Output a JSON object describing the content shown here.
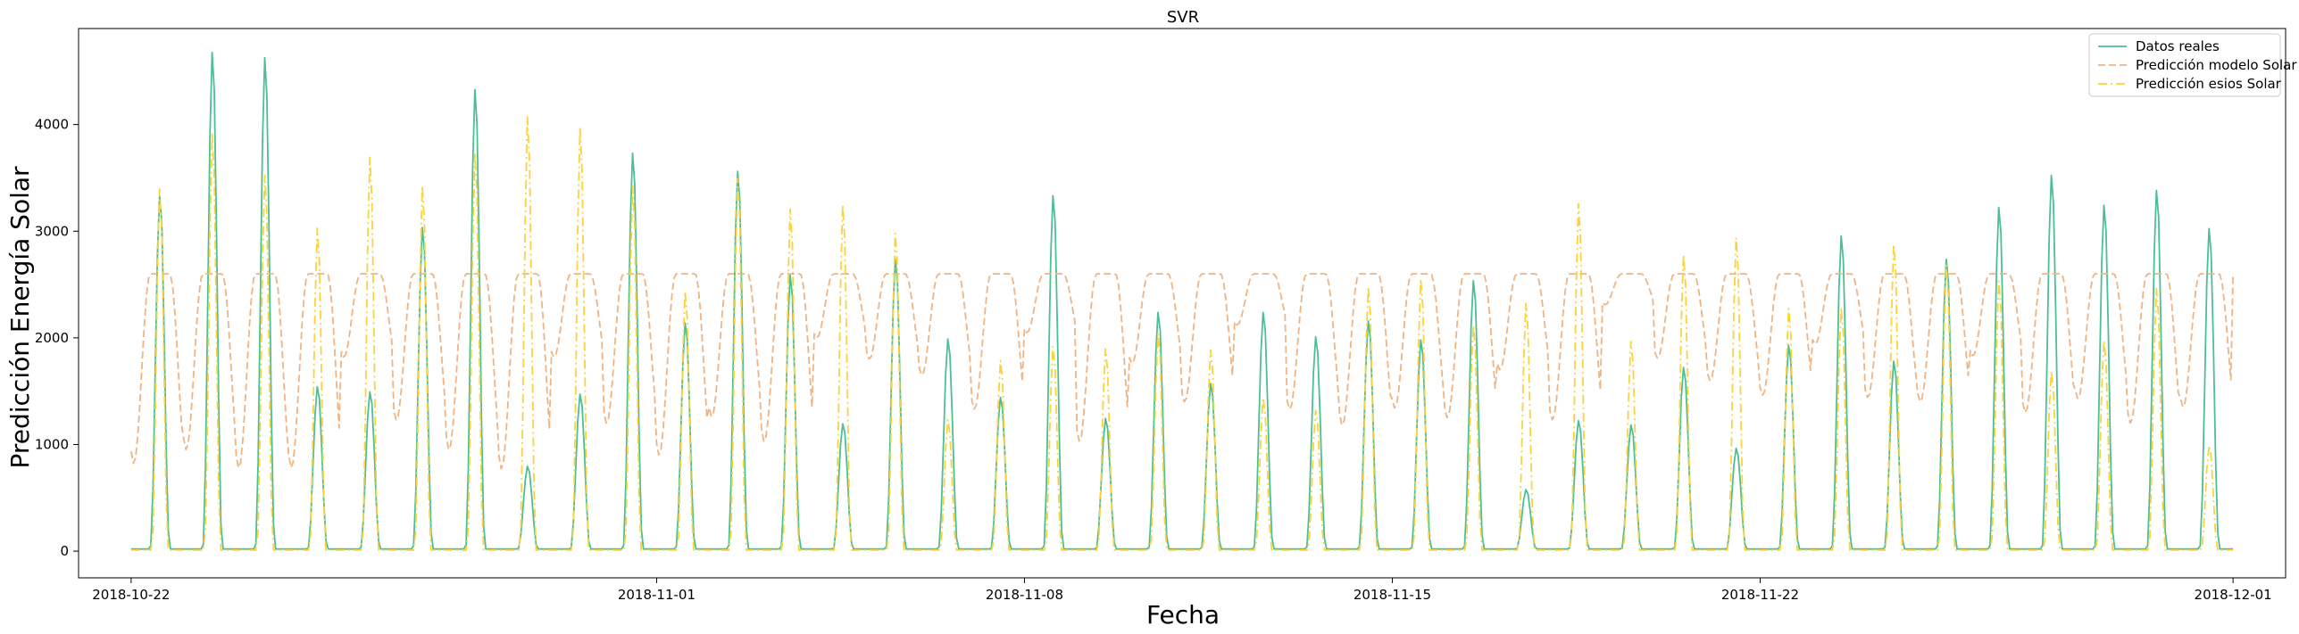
{
  "chart_data": {
    "type": "line",
    "title": "SVR",
    "xlabel": "Fecha",
    "ylabel": "Predicción Energía Solar",
    "x_ticks": [
      "2018-10-22",
      "2018-11-01",
      "2018-11-08",
      "2018-11-15",
      "2018-11-22",
      "2018-12-01"
    ],
    "y_ticks": [
      0,
      1000,
      2000,
      3000,
      4000
    ],
    "xlim": [
      "2018-10-21",
      "2018-12-02"
    ],
    "ylim": [
      -250,
      4900
    ],
    "grid": false,
    "legend_position": "top-right",
    "days": [
      "2018-10-22",
      "2018-10-23",
      "2018-10-24",
      "2018-10-25",
      "2018-10-26",
      "2018-10-27",
      "2018-10-28",
      "2018-10-29",
      "2018-10-30",
      "2018-10-31",
      "2018-11-01",
      "2018-11-02",
      "2018-11-03",
      "2018-11-04",
      "2018-11-05",
      "2018-11-06",
      "2018-11-07",
      "2018-11-08",
      "2018-11-09",
      "2018-11-10",
      "2018-11-11",
      "2018-11-12",
      "2018-11-13",
      "2018-11-14",
      "2018-11-15",
      "2018-11-16",
      "2018-11-17",
      "2018-11-18",
      "2018-11-19",
      "2018-11-20",
      "2018-11-21",
      "2018-11-22",
      "2018-11-23",
      "2018-11-24",
      "2018-11-25",
      "2018-11-26",
      "2018-11-27",
      "2018-11-28",
      "2018-11-29",
      "2018-11-30"
    ],
    "series": [
      {
        "name": "Datos reales",
        "color": "#4dbf94",
        "style": "solid",
        "daily_peak_values": [
          3350,
          4700,
          4650,
          1550,
          1500,
          3050,
          4350,
          800,
          1480,
          3750,
          2150,
          3580,
          2600,
          1200,
          2750,
          2000,
          1450,
          3350,
          1250,
          2250,
          1580,
          2250,
          2020,
          2170,
          1990,
          2550,
          580,
          1230,
          1190,
          1730,
          970,
          1940,
          2970,
          1790,
          2750,
          3240,
          3540,
          3260,
          3400,
          3040
        ],
        "night_baseline": 20
      },
      {
        "name": "Predicción modelo Solar",
        "color": "#efb482",
        "style": "dashed",
        "plateau_value": 2600,
        "daily_dip_values": [
          820,
          950,
          780,
          780,
          1820,
          1230,
          950,
          770,
          1820,
          1200,
          900,
          1260,
          1030,
          2000,
          1800,
          1650,
          1330,
          2050,
          1030,
          1760,
          1400,
          2120,
          1330,
          1180,
          1340,
          1250,
          1700,
          1230,
          2310,
          1810,
          1600,
          1460,
          1940,
          1440,
          1400,
          1830,
          1300,
          1430,
          1200,
          1350
        ],
        "final_value": 2600
      },
      {
        "name": "Predicción esios Solar",
        "color": "#fcd23a",
        "style": "dashdot",
        "daily_peak_values": [
          3420,
          3950,
          3550,
          3050,
          3720,
          3450,
          3760,
          4100,
          4000,
          3450,
          2450,
          3520,
          3230,
          3270,
          3000,
          1240,
          1800,
          1930,
          1910,
          2050,
          1900,
          1450,
          1330,
          2500,
          2570,
          2130,
          2340,
          3280,
          1980,
          2800,
          2960,
          2290,
          2300,
          2900,
          2700,
          2550,
          1700,
          1990,
          2480,
          1000
        ],
        "night_baseline": 10
      }
    ]
  }
}
